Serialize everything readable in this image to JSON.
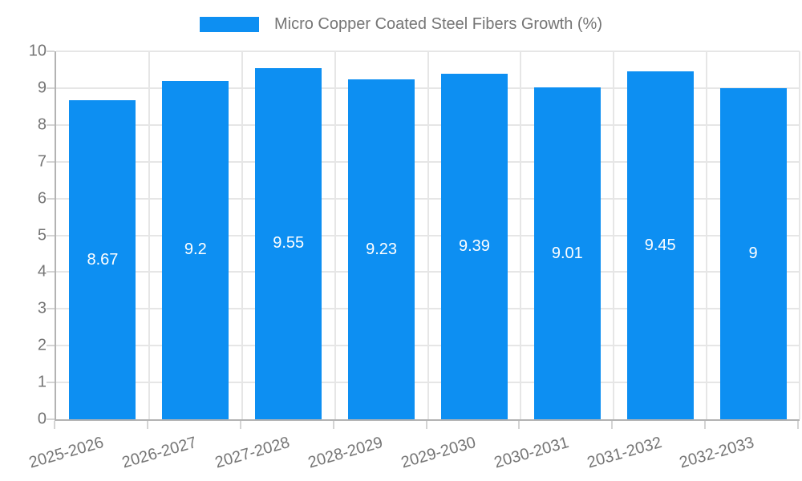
{
  "chart_data": {
    "type": "bar",
    "title": "Micro Copper Coated Steel Fibers Growth (%)",
    "categories": [
      "2025-2026",
      "2026-2027",
      "2027-2028",
      "2028-2029",
      "2029-2030",
      "2030-2031",
      "2031-2032",
      "2032-2033"
    ],
    "values": [
      8.67,
      9.2,
      9.55,
      9.23,
      9.39,
      9.01,
      9.45,
      9
    ],
    "value_labels": [
      "8.67",
      "9.2",
      "9.55",
      "9.23",
      "9.39",
      "9.01",
      "9.45",
      "9"
    ],
    "xlabel": "",
    "ylabel": "",
    "ylim": [
      0,
      10
    ],
    "ytick_step": 1,
    "ytick_labels": [
      "0",
      "1",
      "2",
      "3",
      "4",
      "5",
      "6",
      "7",
      "8",
      "9",
      "10"
    ],
    "grid": true,
    "legend_position": "top",
    "legend_entries": [
      "Micro Copper Coated Steel Fibers Growth (%)"
    ],
    "colors": {
      "bar": "#0d8ff2",
      "grid": "#e6e6e6",
      "axis_border": "#b3b3b3",
      "tick": "#d4d4d4",
      "tick_text": "#757575",
      "value_text": "#ffffff",
      "background": "#ffffff"
    }
  }
}
